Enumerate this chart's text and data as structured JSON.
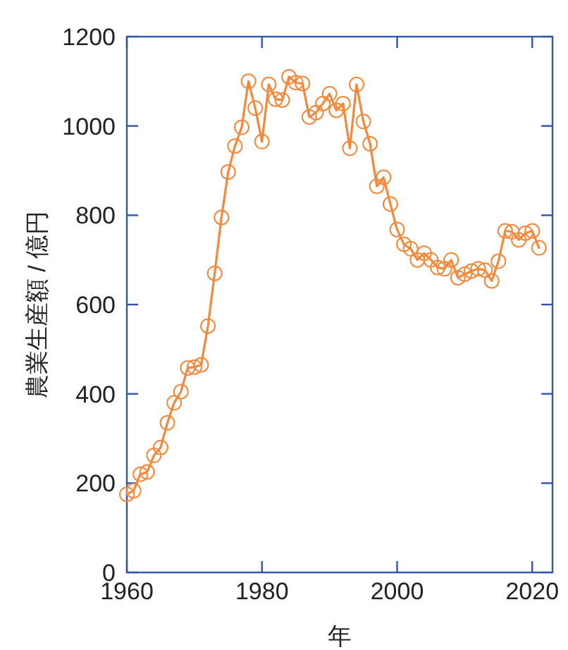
{
  "chart_data": {
    "type": "line",
    "xlabel": "年",
    "ylabel": "農業生産額 / 億円",
    "marker": "circle",
    "grid": false,
    "xlim": [
      1960,
      2023
    ],
    "xticks": [
      1960,
      1980,
      2000,
      2020
    ],
    "ylim": [
      0,
      1200
    ],
    "yticks": [
      0,
      200,
      400,
      600,
      800,
      1000,
      1200
    ],
    "series": [
      {
        "color": "#f5883a",
        "x": [
          1960,
          1961,
          1962,
          1963,
          1964,
          1965,
          1966,
          1967,
          1968,
          1969,
          1970,
          1971,
          1972,
          1973,
          1974,
          1975,
          1976,
          1977,
          1978,
          1979,
          1980,
          1981,
          1982,
          1983,
          1984,
          1985,
          1986,
          1987,
          1988,
          1989,
          1990,
          1991,
          1992,
          1993,
          1994,
          1995,
          1996,
          1997,
          1998,
          1999,
          2000,
          2001,
          2002,
          2003,
          2004,
          2005,
          2006,
          2007,
          2008,
          2009,
          2010,
          2011,
          2012,
          2013,
          2014,
          2015,
          2016,
          2017,
          2018,
          2019,
          2020,
          2021
        ],
        "values": [
          175,
          183,
          220,
          225,
          262,
          280,
          335,
          380,
          405,
          458,
          460,
          465,
          552,
          670,
          795,
          897,
          955,
          997,
          1100,
          1040,
          965,
          1093,
          1060,
          1058,
          1110,
          1097,
          1095,
          1020,
          1030,
          1050,
          1072,
          1035,
          1050,
          950,
          1093,
          1010,
          960,
          865,
          885,
          825,
          768,
          735,
          725,
          700,
          715,
          700,
          683,
          680,
          700,
          660,
          668,
          675,
          680,
          677,
          653,
          697,
          765,
          763,
          745,
          760,
          765,
          727
        ]
      }
    ]
  }
}
